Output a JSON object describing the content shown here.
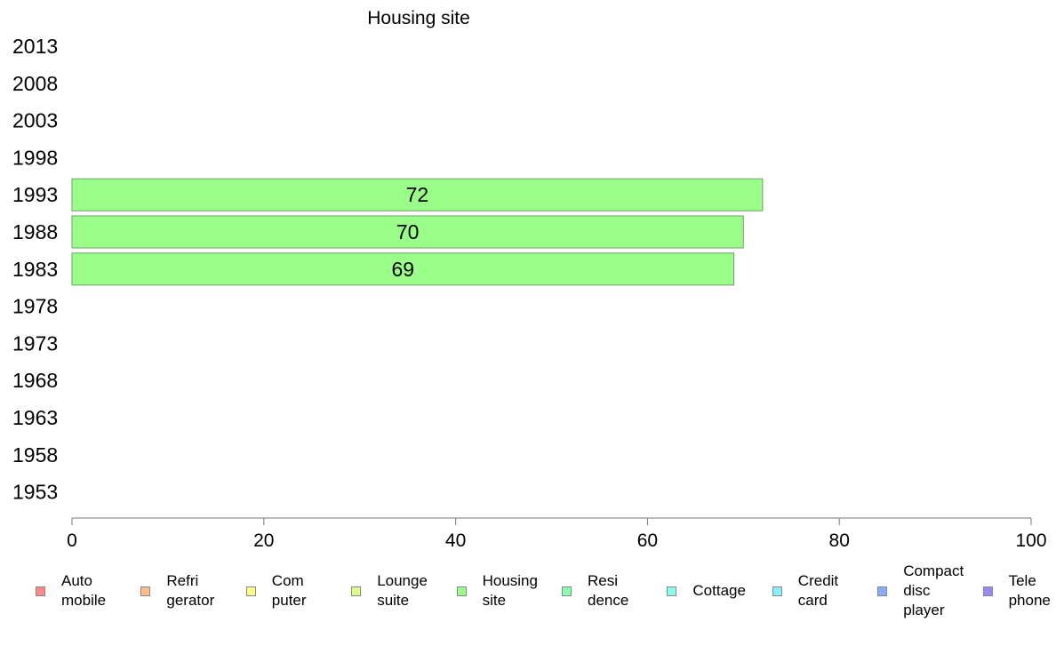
{
  "chart_data": {
    "type": "bar",
    "orientation": "horizontal",
    "title": "Housing site",
    "categories": [
      "2013",
      "2008",
      "2003",
      "1998",
      "1993",
      "1988",
      "1983",
      "1978",
      "1973",
      "1968",
      "1963",
      "1958",
      "1953"
    ],
    "series": [
      {
        "name": "Housing site",
        "color": "#99ff88",
        "values": [
          null,
          null,
          null,
          null,
          72,
          70,
          69,
          null,
          null,
          null,
          null,
          null,
          null
        ],
        "data_labels": [
          "",
          "",
          "",
          "",
          "72",
          "70",
          "69",
          "",
          "",
          "",
          "",
          "",
          ""
        ]
      }
    ],
    "xlim": [
      0,
      100
    ],
    "xticks": [
      "0",
      "20",
      "40",
      "60",
      "80",
      "100"
    ],
    "grid": false,
    "legend_position": "bottom"
  },
  "legend": [
    {
      "label": "Auto\nmobile",
      "color": "#ff8888"
    },
    {
      "label": "Refri\ngerator",
      "color": "#ffbb88"
    },
    {
      "label": "Com\nputer",
      "color": "#ffff88"
    },
    {
      "label": "Lounge\nsuite",
      "color": "#ddff88"
    },
    {
      "label": "Housing\nsite",
      "color": "#99ff88"
    },
    {
      "label": "Resi\ndence",
      "color": "#88ffaa"
    },
    {
      "label": "Cottage",
      "color": "#88ffee"
    },
    {
      "label": "Credit\ncard",
      "color": "#88eeff"
    },
    {
      "label": "Compact\ndisc\nplayer",
      "color": "#88aaff"
    },
    {
      "label": "Tele\nphone",
      "color": "#9988ff"
    }
  ]
}
